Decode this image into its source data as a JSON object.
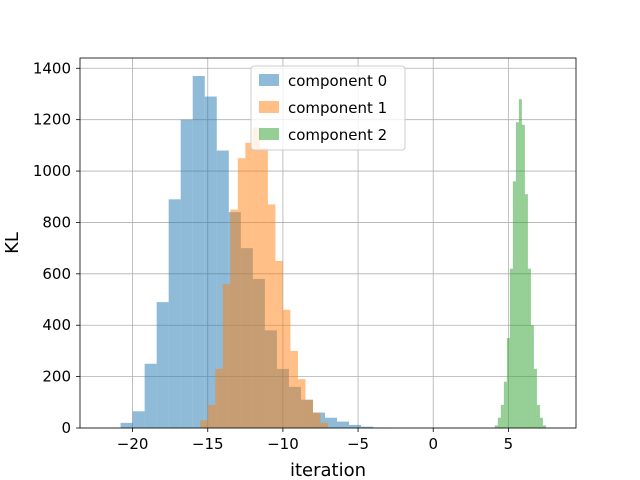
{
  "chart_data": {
    "type": "histogram",
    "xlabel": "iteration",
    "ylabel": "KL",
    "xlim": [
      -23.5,
      9.5
    ],
    "ylim": [
      0,
      1440
    ],
    "xticks": [
      -20,
      -15,
      -10,
      -5,
      0,
      5
    ],
    "yticks": [
      0,
      200,
      400,
      600,
      800,
      1000,
      1200,
      1400
    ],
    "grid": true,
    "legend_position": "upper center",
    "series": [
      {
        "name": "component 0",
        "color": "#1f77b4",
        "bin_edges": [
          -20.8,
          -20.0,
          -19.2,
          -18.4,
          -17.6,
          -16.8,
          -16.0,
          -15.2,
          -14.4,
          -13.6,
          -12.8,
          -12.0,
          -11.2,
          -10.4,
          -9.6,
          -8.8,
          -8.0,
          -7.2,
          -6.4,
          -5.6,
          -4.8,
          -4.0,
          -3.2
        ],
        "counts": [
          20,
          65,
          250,
          490,
          890,
          1200,
          1370,
          1290,
          1080,
          840,
          700,
          580,
          380,
          230,
          160,
          110,
          60,
          40,
          25,
          12,
          5,
          2
        ]
      },
      {
        "name": "component 1",
        "color": "#ff7f0e",
        "bin_edges": [
          -15.5,
          -15.0,
          -14.5,
          -14.0,
          -13.5,
          -13.0,
          -12.5,
          -12.0,
          -11.5,
          -11.0,
          -10.5,
          -10.0,
          -9.5,
          -9.0,
          -8.5,
          -8.0,
          -7.5,
          -7.0
        ],
        "counts": [
          30,
          90,
          230,
          560,
          850,
          1050,
          1110,
          1170,
          1090,
          870,
          650,
          460,
          300,
          190,
          110,
          60,
          20
        ]
      },
      {
        "name": "component 2",
        "color": "#2ca02c",
        "bin_edges": [
          4.1,
          4.3,
          4.5,
          4.7,
          4.9,
          5.1,
          5.3,
          5.5,
          5.7,
          5.9,
          6.1,
          6.3,
          6.5,
          6.7,
          6.9,
          7.1,
          7.3,
          7.5
        ],
        "counts": [
          10,
          40,
          90,
          180,
          350,
          620,
          960,
          1190,
          1280,
          1180,
          910,
          620,
          400,
          230,
          90,
          40,
          10
        ]
      }
    ]
  }
}
